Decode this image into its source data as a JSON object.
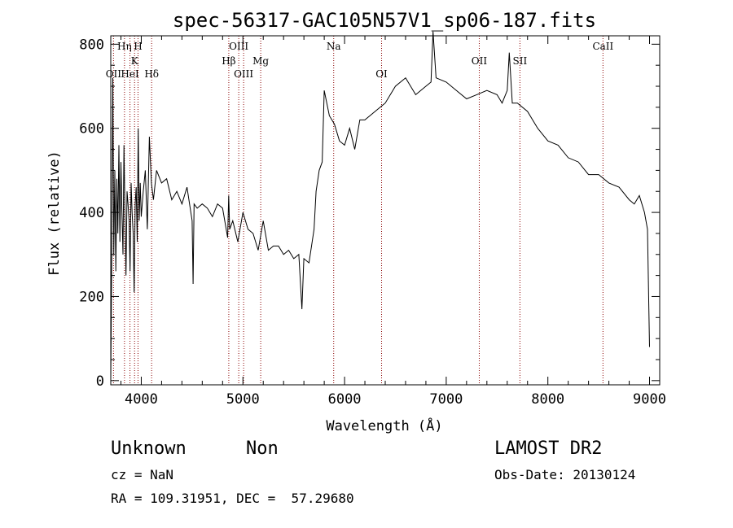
{
  "chart_data": {
    "type": "line",
    "title": "spec-56317-GAC105N57V1_sp06-187.fits",
    "xlabel": "Wavelength (Å)",
    "ylabel": "Flux (relative)",
    "xlim": [
      3700,
      9100
    ],
    "ylim": [
      -10,
      820
    ],
    "xticks": [
      4000,
      5000,
      6000,
      7000,
      8000,
      9000
    ],
    "yticks": [
      0,
      200,
      400,
      600,
      800
    ],
    "grid": false,
    "legend": "none",
    "line_color": "#000000",
    "marker_color": "#8b0000",
    "series": [
      {
        "x": [
          3700,
          3705,
          3710,
          3720,
          3730,
          3740,
          3750,
          3760,
          3770,
          3780,
          3790,
          3800,
          3810,
          3820,
          3830,
          3840,
          3850,
          3860,
          3870,
          3880,
          3890,
          3900,
          3910,
          3920,
          3930,
          3940,
          3950,
          3960,
          3970,
          3980,
          3990,
          4000,
          4020,
          4040,
          4060,
          4080,
          4100,
          4120,
          4150,
          4200,
          4250,
          4300,
          4350,
          4400,
          4450,
          4500,
          4510,
          4520,
          4550,
          4600,
          4650,
          4700,
          4750,
          4800,
          4850,
          4860,
          4870,
          4900,
          4950,
          5000,
          5050,
          5100,
          5150,
          5200,
          5250,
          5300,
          5350,
          5400,
          5450,
          5500,
          5550,
          5580,
          5600,
          5650,
          5700,
          5720,
          5750,
          5780,
          5800,
          5850,
          5900,
          5950,
          6000,
          6050,
          6100,
          6150,
          6200,
          6300,
          6400,
          6500,
          6600,
          6700,
          6800,
          6850,
          6870,
          6900,
          7000,
          7100,
          7200,
          7300,
          7400,
          7500,
          7550,
          7600,
          7620,
          7650,
          7700,
          7800,
          7900,
          8000,
          8100,
          8200,
          8300,
          8400,
          8500,
          8600,
          8700,
          8800,
          8850,
          8900,
          8950,
          8980,
          9000
        ],
        "y": [
          0,
          150,
          300,
          720,
          300,
          500,
          260,
          480,
          350,
          560,
          330,
          520,
          400,
          300,
          560,
          390,
          250,
          450,
          420,
          380,
          260,
          470,
          400,
          350,
          210,
          420,
          460,
          330,
          600,
          380,
          470,
          390,
          450,
          500,
          360,
          580,
          470,
          430,
          500,
          470,
          480,
          430,
          450,
          420,
          460,
          380,
          230,
          420,
          410,
          420,
          410,
          390,
          420,
          410,
          340,
          440,
          360,
          380,
          330,
          400,
          360,
          350,
          310,
          380,
          310,
          320,
          320,
          300,
          310,
          290,
          300,
          170,
          290,
          280,
          360,
          450,
          500,
          520,
          690,
          630,
          610,
          570,
          560,
          600,
          550,
          620,
          620,
          640,
          660,
          700,
          720,
          680,
          700,
          710,
          830,
          720,
          710,
          690,
          670,
          680,
          690,
          680,
          660,
          690,
          780,
          660,
          660,
          640,
          600,
          570,
          560,
          530,
          520,
          490,
          490,
          470,
          460,
          430,
          420,
          440,
          400,
          360,
          80
        ]
      }
    ],
    "lines": [
      {
        "label": "OII",
        "x": 3727,
        "row": 3
      },
      {
        "label": "Hη",
        "x": 3835,
        "row": 1
      },
      {
        "label": "HeI",
        "x": 3889,
        "row": 3
      },
      {
        "label": "K",
        "x": 3934,
        "row": 2
      },
      {
        "label": "H",
        "x": 3968,
        "row": 1
      },
      {
        "label": "Hδ",
        "x": 4102,
        "row": 3
      },
      {
        "label": "Hβ",
        "x": 4861,
        "row": 2
      },
      {
        "label": "OIII",
        "x": 4959,
        "row": 1
      },
      {
        "label": "OIII",
        "x": 5007,
        "row": 3
      },
      {
        "label": "Mg",
        "x": 5175,
        "row": 2
      },
      {
        "label": "Na",
        "x": 5893,
        "row": 1
      },
      {
        "label": "OI",
        "x": 6364,
        "row": 3
      },
      {
        "label": "OII",
        "x": 7325,
        "row": 2
      },
      {
        "label": "SII",
        "x": 7725,
        "row": 2
      },
      {
        "label": "CaII",
        "x": 8542,
        "row": 1
      }
    ]
  },
  "info": {
    "object_class": "Unknown",
    "object_subclass": "Non",
    "cz": "cz = NaN",
    "coords": "RA = 109.31951, DEC =  57.29680",
    "survey": "LAMOST DR2",
    "obs_date": "Obs-Date: 20130124"
  }
}
